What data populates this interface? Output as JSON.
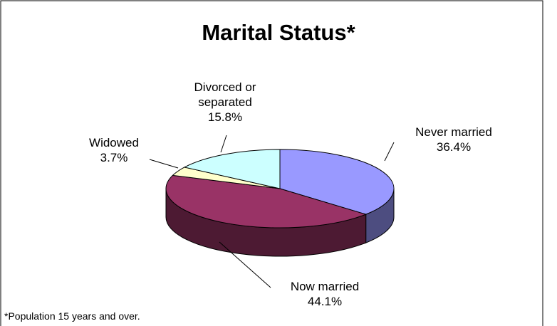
{
  "chart_data": {
    "type": "pie3d",
    "title": "Marital Status*",
    "categories": [
      "Never married",
      "Now married",
      "Widowed",
      "Divorced or separated"
    ],
    "values": [
      36.4,
      44.1,
      3.7,
      15.8
    ],
    "value_labels": [
      "36.4%",
      "44.1%",
      "3.7%",
      "15.8%"
    ],
    "colors": [
      "#9999ff",
      "#993366",
      "#ffffcc",
      "#ccffff"
    ],
    "footnote": "*Population 15 years and over."
  }
}
